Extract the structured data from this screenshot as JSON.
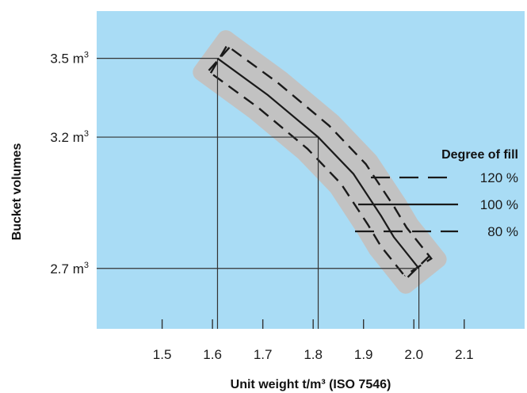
{
  "chart_data": {
    "type": "line",
    "title": "",
    "xlabel": "Unit weight t/m³ (ISO 7546)",
    "ylabel": "Bucket volumes",
    "xlim": [
      1.37,
      2.22
    ],
    "ylim": [
      2.47,
      3.68
    ],
    "x_ticks": [
      {
        "value": 1.5,
        "label": "1.5"
      },
      {
        "value": 1.6,
        "label": "1.6"
      },
      {
        "value": 1.7,
        "label": "1.7"
      },
      {
        "value": 1.8,
        "label": "1.8"
      },
      {
        "value": 1.9,
        "label": "1.9"
      },
      {
        "value": 2.0,
        "label": "2.0"
      },
      {
        "value": 2.1,
        "label": "2.1"
      }
    ],
    "y_ticks": [
      {
        "value": 3.5,
        "label": "3.5 m",
        "sup": "3"
      },
      {
        "value": 3.2,
        "label": "3.2 m",
        "sup": "3"
      },
      {
        "value": 2.7,
        "label": "2.7 m",
        "sup": "3"
      }
    ],
    "legend": {
      "title": "Degree of fill",
      "placement": "right",
      "entries": [
        {
          "label": "120 %",
          "style": "dashed"
        },
        {
          "label": "100 %",
          "style": "solid"
        },
        {
          "label": "80 %",
          "style": "dashed"
        }
      ]
    },
    "reference_points": [
      {
        "x": 1.61,
        "y": 3.5
      },
      {
        "x": 1.81,
        "y": 3.2
      },
      {
        "x": 2.01,
        "y": 2.7
      }
    ],
    "series": [
      {
        "name": "100 %",
        "style": "solid",
        "points": [
          [
            1.61,
            3.5
          ],
          [
            1.71,
            3.36
          ],
          [
            1.81,
            3.2
          ],
          [
            1.88,
            3.06
          ],
          [
            1.935,
            2.9
          ],
          [
            1.96,
            2.82
          ],
          [
            2.01,
            2.7
          ]
        ]
      }
    ],
    "colors": {
      "plot_background": "#a9dcf5",
      "band": "#c2c2c2",
      "line": "#1a1a1a"
    }
  }
}
